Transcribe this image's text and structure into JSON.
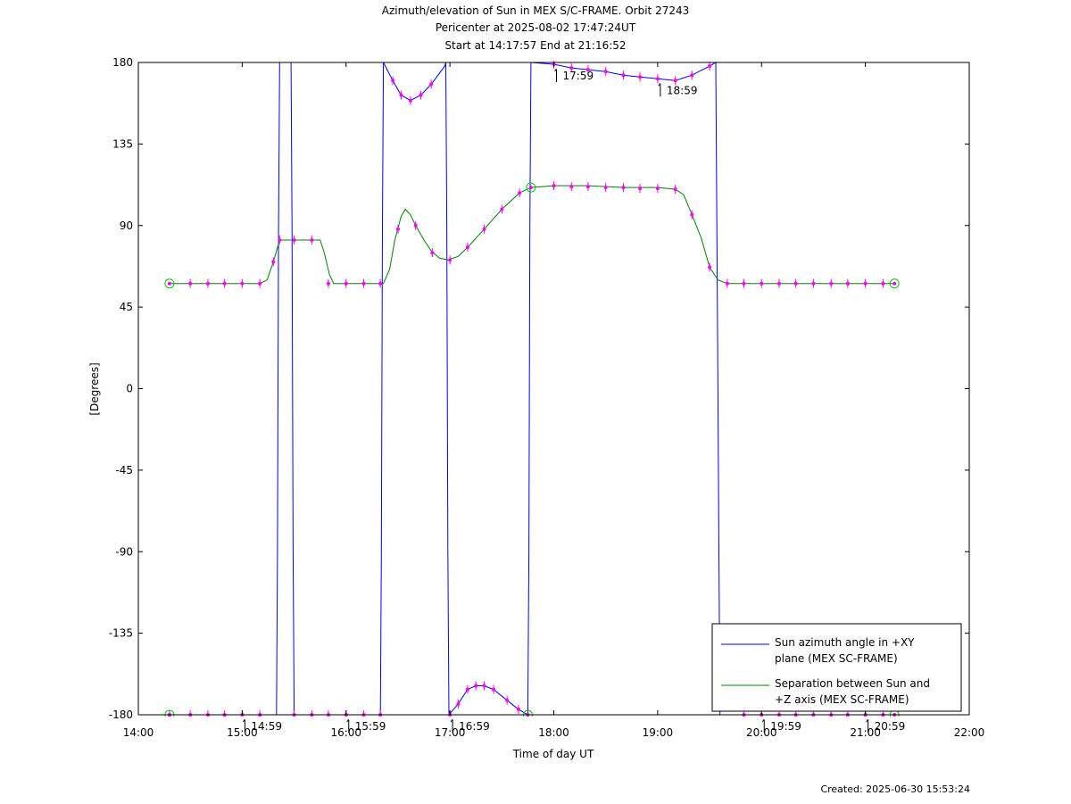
{
  "chart_data": {
    "type": "line",
    "title": "Azimuth/elevation of Sun in MEX S/C-FRAME.  Orbit 27243",
    "subtitle": "Pericenter at 2025-08-02 17:47:24UT",
    "subtitle2": "Start at 14:17:57 End at 21:16:52",
    "xlabel": "Time of day UT",
    "ylabel": "[Degrees]",
    "xlim": [
      14.0,
      22.0
    ],
    "ylim": [
      -180,
      180
    ],
    "x_ticks": [
      {
        "v": 14,
        "label": "14:00"
      },
      {
        "v": 15,
        "label": "15:00"
      },
      {
        "v": 16,
        "label": "16:00"
      },
      {
        "v": 17,
        "label": "17:00"
      },
      {
        "v": 18,
        "label": "18:00"
      },
      {
        "v": 19,
        "label": "19:00"
      },
      {
        "v": 20,
        "label": "20:00"
      },
      {
        "v": 21,
        "label": "21:00"
      },
      {
        "v": 22,
        "label": "22:00"
      }
    ],
    "y_ticks": [
      {
        "v": 180,
        "label": "180"
      },
      {
        "v": 135,
        "label": "135"
      },
      {
        "v": 90,
        "label": "90"
      },
      {
        "v": 45,
        "label": "45"
      },
      {
        "v": 0,
        "label": "0"
      },
      {
        "v": -45,
        "label": "-45"
      },
      {
        "v": -90,
        "label": "-90"
      },
      {
        "v": -135,
        "label": "-135"
      },
      {
        "v": -180,
        "label": "-180"
      }
    ],
    "legend_position": "bottom-right",
    "series": [
      {
        "name_lines": [
          "Sun azimuth angle in +XY",
          "plane (MEX SC-FRAME)"
        ],
        "color": "#0000ff",
        "segments": [
          [
            [
              14.3,
              -180
            ],
            [
              15.33,
              -180
            ],
            [
              15.34,
              -90
            ],
            [
              15.35,
              90
            ],
            [
              15.36,
              180
            ]
          ],
          [
            [
              15.47,
              180
            ],
            [
              15.48,
              90
            ],
            [
              15.49,
              -90
            ],
            [
              15.5,
              -180
            ],
            [
              16.33,
              -180
            ],
            [
              16.34,
              -90
            ],
            [
              16.35,
              90
            ],
            [
              16.36,
              180
            ]
          ],
          [
            [
              16.36,
              180
            ],
            [
              16.45,
              170
            ],
            [
              16.53,
              162
            ],
            [
              16.62,
              159
            ],
            [
              16.72,
              162
            ],
            [
              16.82,
              168
            ],
            [
              16.95,
              178
            ],
            [
              16.96,
              180
            ]
          ],
          [
            [
              16.96,
              180
            ],
            [
              16.97,
              90
            ],
            [
              16.98,
              -90
            ],
            [
              16.99,
              -180
            ],
            [
              17.08,
              -174
            ],
            [
              17.17,
              -166
            ],
            [
              17.25,
              -164
            ],
            [
              17.33,
              -164
            ],
            [
              17.42,
              -166
            ],
            [
              17.55,
              -172
            ],
            [
              17.66,
              -177
            ],
            [
              17.75,
              -180
            ],
            [
              17.76,
              -90
            ],
            [
              17.77,
              90
            ],
            [
              17.78,
              180
            ]
          ],
          [
            [
              17.78,
              180
            ],
            [
              18.0,
              179
            ],
            [
              18.17,
              177
            ],
            [
              18.33,
              176
            ],
            [
              18.5,
              175
            ],
            [
              18.67,
              173
            ],
            [
              18.83,
              172
            ],
            [
              19.0,
              171
            ],
            [
              19.17,
              170
            ],
            [
              19.33,
              173
            ],
            [
              19.5,
              178
            ],
            [
              19.56,
              180
            ],
            [
              19.57,
              90
            ],
            [
              19.58,
              0
            ],
            [
              19.59,
              -90
            ],
            [
              19.6,
              -180
            ],
            [
              21.28,
              -180
            ]
          ]
        ]
      },
      {
        "name_lines": [
          "Separation between Sun and",
          "+Z axis (MEX SC-FRAME)"
        ],
        "color": "#008000",
        "segments": [
          [
            [
              14.3,
              58
            ],
            [
              15.17,
              58
            ],
            [
              15.24,
              60
            ],
            [
              15.3,
              70
            ],
            [
              15.33,
              76
            ],
            [
              15.36,
              82
            ],
            [
              15.75,
              82
            ],
            [
              15.79,
              75
            ],
            [
              15.84,
              63
            ],
            [
              15.88,
              58
            ],
            [
              16.36,
              58
            ],
            [
              16.42,
              66
            ],
            [
              16.47,
              82
            ],
            [
              16.53,
              95
            ],
            [
              16.57,
              99
            ],
            [
              16.62,
              96
            ],
            [
              16.67,
              90
            ],
            [
              16.75,
              82
            ],
            [
              16.82,
              76
            ],
            [
              16.9,
              72
            ],
            [
              16.98,
              71
            ],
            [
              17.08,
              73
            ],
            [
              17.17,
              78
            ],
            [
              17.33,
              88
            ],
            [
              17.5,
              99
            ],
            [
              17.67,
              108
            ],
            [
              17.78,
              111
            ],
            [
              18.0,
              112
            ],
            [
              18.33,
              112
            ],
            [
              18.67,
              111
            ],
            [
              19.0,
              111
            ],
            [
              19.17,
              110
            ],
            [
              19.25,
              107
            ],
            [
              19.33,
              96
            ],
            [
              19.42,
              83
            ],
            [
              19.5,
              67
            ],
            [
              19.58,
              60
            ],
            [
              19.67,
              58
            ],
            [
              21.28,
              58
            ]
          ]
        ]
      }
    ],
    "markers": {
      "color": "#ff00ff",
      "azimuth": [
        [
          14.3,
          -180
        ],
        [
          14.5,
          -180
        ],
        [
          14.67,
          -180
        ],
        [
          14.83,
          -180
        ],
        [
          15.0,
          -180
        ],
        [
          15.17,
          -180
        ],
        [
          15.5,
          -180
        ],
        [
          15.67,
          -180
        ],
        [
          15.83,
          -180
        ],
        [
          16.0,
          -180
        ],
        [
          16.17,
          -180
        ],
        [
          16.33,
          -180
        ],
        [
          16.45,
          170
        ],
        [
          16.53,
          162
        ],
        [
          16.62,
          159
        ],
        [
          16.72,
          162
        ],
        [
          16.82,
          168
        ],
        [
          17.0,
          -180
        ],
        [
          17.08,
          -174
        ],
        [
          17.17,
          -166
        ],
        [
          17.25,
          -164
        ],
        [
          17.33,
          -164
        ],
        [
          17.42,
          -166
        ],
        [
          17.55,
          -172
        ],
        [
          17.66,
          -177
        ],
        [
          18.0,
          179
        ],
        [
          18.17,
          177
        ],
        [
          18.33,
          176
        ],
        [
          18.5,
          175
        ],
        [
          18.67,
          173
        ],
        [
          18.83,
          172
        ],
        [
          19.0,
          171
        ],
        [
          19.17,
          170
        ],
        [
          19.33,
          173
        ],
        [
          19.5,
          178
        ],
        [
          19.83,
          -180
        ],
        [
          20.0,
          -180
        ],
        [
          20.17,
          -180
        ],
        [
          20.33,
          -180
        ],
        [
          20.5,
          -180
        ],
        [
          20.67,
          -180
        ],
        [
          20.83,
          -180
        ],
        [
          21.0,
          -180
        ],
        [
          21.17,
          -180
        ]
      ],
      "separation": [
        [
          14.5,
          58
        ],
        [
          14.67,
          58
        ],
        [
          14.83,
          58
        ],
        [
          15.0,
          58
        ],
        [
          15.17,
          58
        ],
        [
          15.3,
          70
        ],
        [
          15.36,
          82
        ],
        [
          15.5,
          82
        ],
        [
          15.67,
          82
        ],
        [
          15.83,
          58
        ],
        [
          16.0,
          58
        ],
        [
          16.17,
          58
        ],
        [
          16.33,
          58
        ],
        [
          16.5,
          88
        ],
        [
          16.67,
          90
        ],
        [
          16.83,
          75
        ],
        [
          17.0,
          71
        ],
        [
          17.17,
          78
        ],
        [
          17.33,
          88
        ],
        [
          17.5,
          99
        ],
        [
          17.67,
          108
        ],
        [
          18.0,
          112
        ],
        [
          18.17,
          111.5
        ],
        [
          18.33,
          111.5
        ],
        [
          18.5,
          111
        ],
        [
          18.67,
          111
        ],
        [
          18.83,
          110.5
        ],
        [
          19.0,
          110.5
        ],
        [
          19.17,
          110
        ],
        [
          19.33,
          96
        ],
        [
          19.5,
          67
        ],
        [
          19.67,
          58
        ],
        [
          19.83,
          58
        ],
        [
          20.0,
          58
        ],
        [
          20.17,
          58
        ],
        [
          20.33,
          58
        ],
        [
          20.5,
          58
        ],
        [
          20.67,
          58
        ],
        [
          20.83,
          58
        ],
        [
          21.0,
          58
        ],
        [
          21.17,
          58
        ]
      ]
    },
    "circles": [
      [
        14.3,
        58
      ],
      [
        14.3,
        -180
      ],
      [
        17.78,
        111
      ],
      [
        17.75,
        -180
      ],
      [
        21.28,
        58
      ],
      [
        21.28,
        -180
      ]
    ],
    "annotations": [
      {
        "x": 15.0,
        "y": -180,
        "label": "14:59"
      },
      {
        "x": 16.0,
        "y": -180,
        "label": "15:59"
      },
      {
        "x": 17.0,
        "y": -180,
        "label": "16:59"
      },
      {
        "x": 18.0,
        "y": 179,
        "label": "17:59"
      },
      {
        "x": 19.0,
        "y": 171,
        "label": "18:59"
      },
      {
        "x": 20.0,
        "y": -180,
        "label": "19:59"
      },
      {
        "x": 21.0,
        "y": -180,
        "label": "20:59"
      }
    ]
  },
  "footer": {
    "created": "Created: 2025-06-30 15:53:24"
  }
}
